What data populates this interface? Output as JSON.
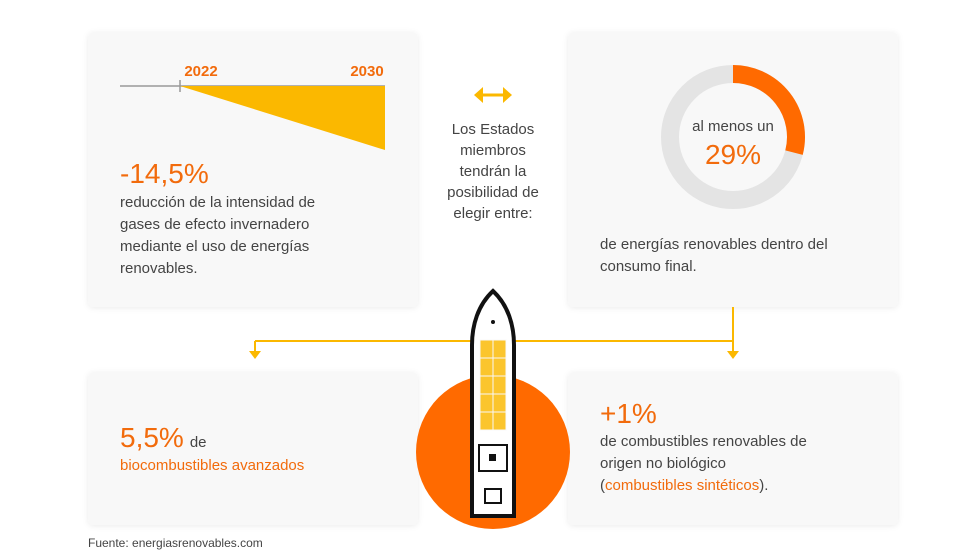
{
  "left_card": {
    "year_start": "2022",
    "year_end": "2030",
    "figure": "-14,5%",
    "text": [
      "reducción de la intensidad de",
      "gases de efecto invernadero",
      "mediante el uso de energías",
      "renovables."
    ]
  },
  "center_text": [
    "Los Estados",
    "miembros",
    "tendrán la",
    "posibilidad de",
    "elegir entre:"
  ],
  "right_card": {
    "prefix": "al menos un",
    "share": {
      "value": 29,
      "label": "29%"
    },
    "text": [
      "de energías renovables dentro del",
      "consumo final."
    ]
  },
  "options": [
    {
      "figure": "5,5%",
      "suffix": "de",
      "highlight": "biocombustibles avanzados"
    },
    {
      "figure": "+1%",
      "text": [
        "de combustibles renovables de",
        "origen no biológico"
      ],
      "open": "(",
      "highlight": "combustibles sintéticos",
      "close": ")."
    }
  ],
  "source": "Fuente: energiasrenovables.com"
}
